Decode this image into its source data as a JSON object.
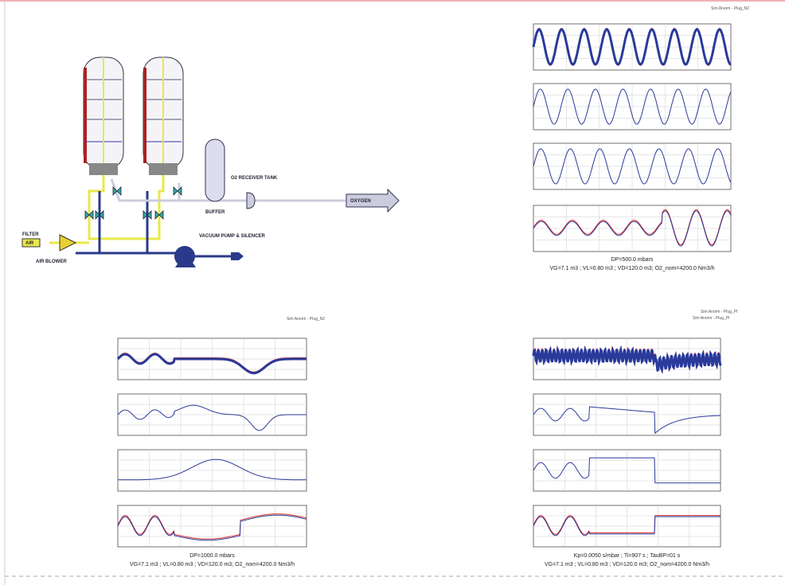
{
  "diagram": {
    "labels": {
      "filter": "FILTER",
      "air": "AIR",
      "air_blower": "AIR BLOWER",
      "vacuum_pump": "VACUUM PUMP & SILENCER",
      "receiver": "O2 RECEIVER TANK",
      "buffer": "BUFFER",
      "oxygen": "OXYGEN"
    }
  },
  "panels": [
    {
      "header": "Sim Anorm - Plug_N2",
      "caption_1": "DP=500.0 mbars",
      "caption_2": "VG=7.1 m3 ; VL=0.80 m3 ; VD=120.0 m3; O2_nom=4200.0 Nm3/h"
    },
    {
      "header": "Sim Anorm - Plug_N2",
      "caption_1": "DP=1000.0 mbars",
      "caption_2": "VG=7.1 m3 ; VL=0.80 m3 ; VD=120.0 m3; O2_nom=4200.0 Nm3/h"
    },
    {
      "header": "Sim Anorm - Plug_PI",
      "header_2": "Sim Anorm - Plug_PI",
      "caption_1": "Kp=0.0050 s/mbar ; Ti=907 s ; TauBP=01 s",
      "caption_2": "VG=7.1 m3 ; VL=0.80 m3 ; VD=120.0 m3; O2_nom=4200.0 Nm3/h"
    }
  ]
}
